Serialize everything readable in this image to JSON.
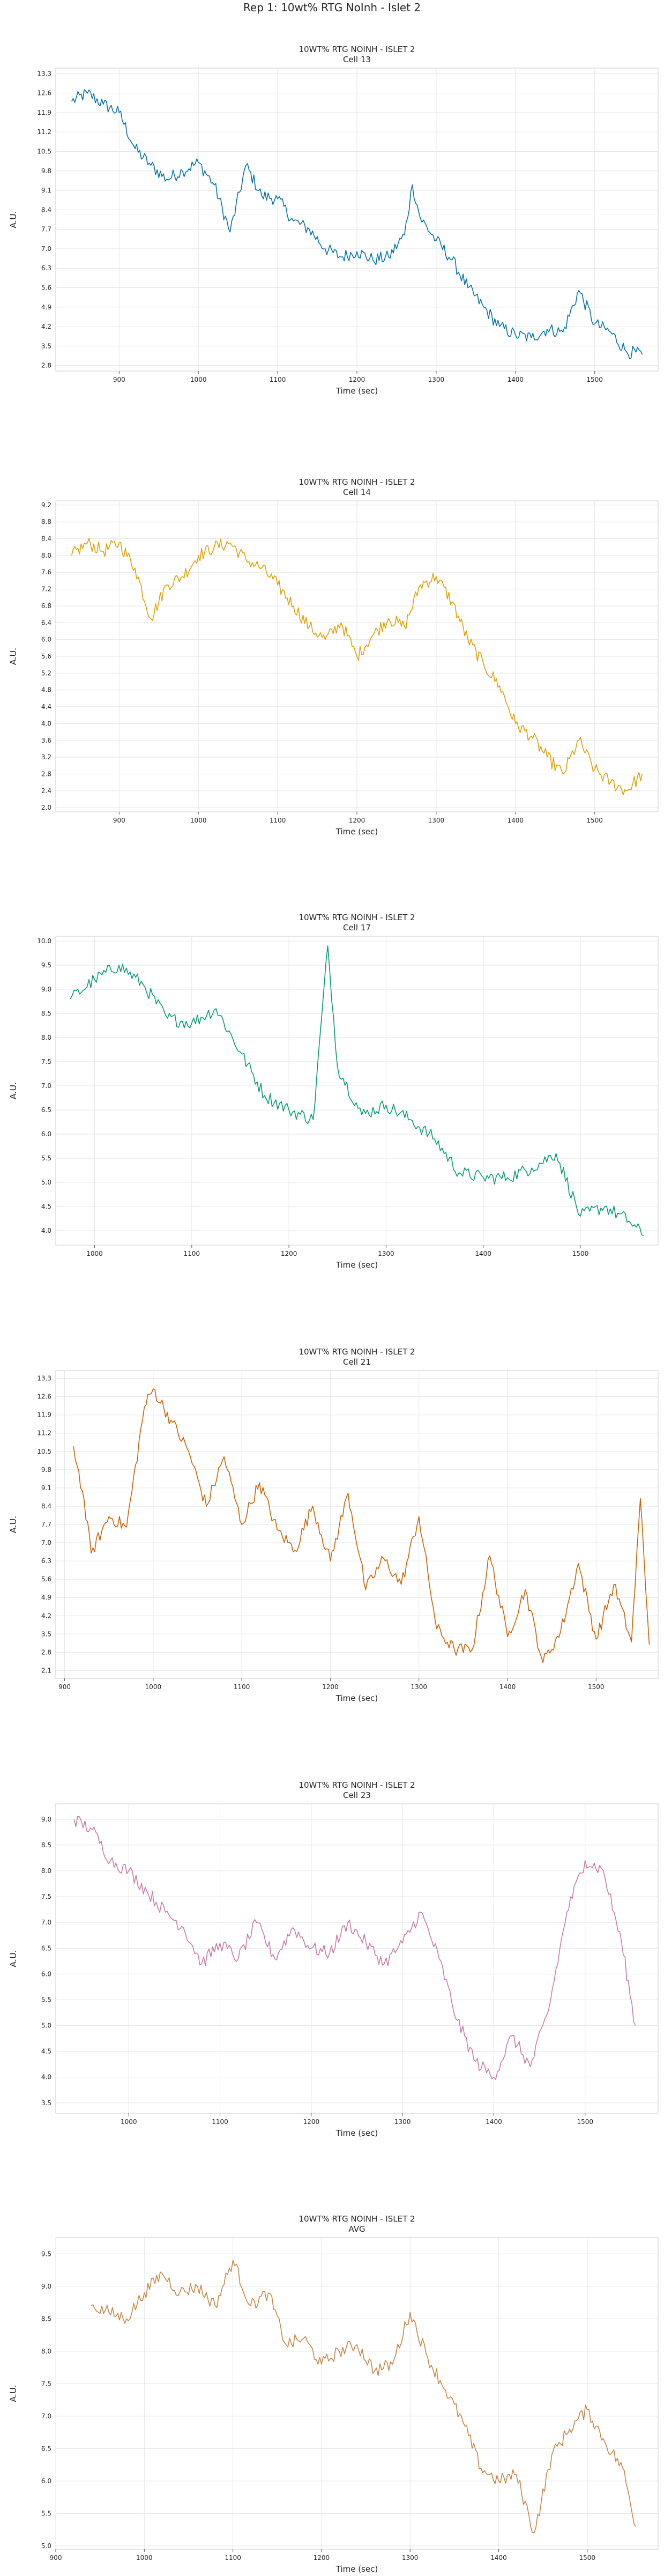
{
  "figure": {
    "suptitle": "Rep 1: 10wt% RTG NoInh - Islet 2"
  },
  "chart_data": [
    {
      "type": "line",
      "title": "10WT% RTG NOINH - ISLET 2",
      "subtitle": "Cell 13",
      "xlabel": "Time (sec)",
      "ylabel": "A.U.",
      "xlim": [
        820,
        1580
      ],
      "ylim": [
        2.6,
        13.5
      ],
      "xticks": [
        900,
        1000,
        1100,
        1200,
        1300,
        1400,
        1500
      ],
      "yticks": [
        2.8,
        3.5,
        4.2,
        4.9,
        5.6,
        6.3,
        7.0,
        7.7,
        8.4,
        9.1,
        9.8,
        10.5,
        11.2,
        11.9,
        12.6,
        13.3
      ],
      "ytick_labels": [
        "2.8",
        "3.5",
        "4.2",
        "4.9",
        "5.6",
        "6.3",
        "7.0",
        "7.7",
        "8.4",
        "9.1",
        "9.8",
        "10.5",
        "11.2",
        "11.9",
        "12.6",
        "13.3"
      ],
      "grid": true,
      "series": [
        {
          "color": "#0072B2",
          "x": [
            840,
            860,
            880,
            900,
            920,
            940,
            960,
            980,
            1000,
            1020,
            1040,
            1060,
            1080,
            1100,
            1120,
            1140,
            1160,
            1180,
            1200,
            1220,
            1240,
            1260,
            1270,
            1280,
            1300,
            1320,
            1340,
            1360,
            1380,
            1400,
            1420,
            1440,
            1460,
            1480,
            1500,
            1520,
            1540,
            1560
          ],
          "y": [
            12.3,
            12.6,
            12.2,
            11.9,
            10.6,
            10.0,
            9.5,
            9.8,
            10.1,
            9.3,
            7.6,
            10.0,
            8.9,
            8.8,
            8.0,
            7.7,
            7.0,
            6.7,
            6.9,
            6.6,
            6.7,
            7.5,
            9.3,
            8.1,
            7.3,
            6.6,
            5.6,
            4.9,
            4.2,
            3.9,
            3.8,
            4.1,
            4.0,
            5.5,
            4.3,
            4.0,
            3.3,
            3.2
          ]
        }
      ]
    },
    {
      "type": "line",
      "title": "10WT% RTG NOINH - ISLET 2",
      "subtitle": "Cell 14",
      "xlabel": "Time (sec)",
      "ylabel": "A.U.",
      "xlim": [
        820,
        1580
      ],
      "ylim": [
        1.9,
        9.3
      ],
      "xticks": [
        900,
        1000,
        1100,
        1200,
        1300,
        1400,
        1500
      ],
      "yticks": [
        2.0,
        2.4,
        2.8,
        3.2,
        3.6,
        4.0,
        4.4,
        4.8,
        5.2,
        5.6,
        6.0,
        6.4,
        6.8,
        7.2,
        7.6,
        8.0,
        8.4,
        8.8,
        9.2
      ],
      "ytick_labels": [
        "2.0",
        "2.4",
        "2.8",
        "3.2",
        "3.6",
        "4.0",
        "4.4",
        "4.8",
        "5.2",
        "5.6",
        "6.0",
        "6.4",
        "6.8",
        "7.2",
        "7.6",
        "8.0",
        "8.4",
        "8.8",
        "9.2"
      ],
      "grid": true,
      "series": [
        {
          "color": "#E69F00",
          "x": [
            840,
            860,
            880,
            900,
            920,
            940,
            960,
            980,
            1000,
            1020,
            1040,
            1060,
            1080,
            1100,
            1120,
            1140,
            1160,
            1180,
            1200,
            1220,
            1240,
            1260,
            1280,
            1300,
            1320,
            1340,
            1360,
            1380,
            1400,
            1420,
            1440,
            1460,
            1480,
            1500,
            1520,
            1540,
            1560
          ],
          "y": [
            8.0,
            8.3,
            8.1,
            8.3,
            7.7,
            6.5,
            7.3,
            7.5,
            8.0,
            8.2,
            8.3,
            7.9,
            7.7,
            7.3,
            6.8,
            6.3,
            6.0,
            6.4,
            5.6,
            6.1,
            6.5,
            6.3,
            7.3,
            7.5,
            6.9,
            6.0,
            5.4,
            4.9,
            4.0,
            3.7,
            3.2,
            2.8,
            3.6,
            2.9,
            2.6,
            2.4,
            2.8
          ]
        }
      ]
    },
    {
      "type": "line",
      "title": "10WT% RTG NOINH - ISLET 2",
      "subtitle": "Cell 17",
      "xlabel": "Time (sec)",
      "ylabel": "A.U.",
      "xlim": [
        960,
        1580
      ],
      "ylim": [
        3.7,
        10.1
      ],
      "xticks": [
        1000,
        1100,
        1200,
        1300,
        1400,
        1500
      ],
      "yticks": [
        4.0,
        4.5,
        5.0,
        5.5,
        6.0,
        6.5,
        7.0,
        7.5,
        8.0,
        8.5,
        9.0,
        9.5,
        10.0
      ],
      "ytick_labels": [
        "4.0",
        "4.5",
        "5.0",
        "5.5",
        "6.0",
        "6.5",
        "7.0",
        "7.5",
        "8.0",
        "8.5",
        "9.0",
        "9.5",
        "10.0"
      ],
      "grid": true,
      "series": [
        {
          "color": "#009E73",
          "x": [
            975,
            1000,
            1025,
            1050,
            1075,
            1100,
            1125,
            1150,
            1175,
            1200,
            1225,
            1240,
            1250,
            1275,
            1300,
            1325,
            1350,
            1375,
            1400,
            1425,
            1450,
            1475,
            1500,
            1525,
            1550,
            1565
          ],
          "y": [
            8.8,
            9.2,
            9.5,
            9.1,
            8.4,
            8.3,
            8.6,
            7.7,
            6.8,
            6.5,
            6.3,
            9.9,
            7.4,
            6.4,
            6.6,
            6.3,
            5.9,
            5.2,
            5.1,
            5.1,
            5.3,
            5.6,
            4.3,
            4.5,
            4.2,
            3.9
          ]
        }
      ]
    },
    {
      "type": "line",
      "title": "10WT% RTG NOINH - ISLET 2",
      "subtitle": "Cell 21",
      "xlabel": "Time (sec)",
      "ylabel": "A.U.",
      "xlim": [
        890,
        1570
      ],
      "ylim": [
        1.8,
        13.6
      ],
      "xticks": [
        900,
        1000,
        1100,
        1200,
        1300,
        1400,
        1500
      ],
      "yticks": [
        2.1,
        2.8,
        3.5,
        4.2,
        4.9,
        5.6,
        6.3,
        7.0,
        7.7,
        8.4,
        9.1,
        9.8,
        10.5,
        11.2,
        11.9,
        12.6,
        13.3
      ],
      "ytick_labels": [
        "2.1",
        "2.8",
        "3.5",
        "4.2",
        "4.9",
        "5.6",
        "6.3",
        "7.0",
        "7.7",
        "8.4",
        "9.1",
        "9.8",
        "10.5",
        "11.2",
        "11.9",
        "12.6",
        "13.3"
      ],
      "grid": true,
      "series": [
        {
          "color": "#D55E00",
          "x": [
            910,
            920,
            930,
            950,
            970,
            990,
            1000,
            1020,
            1040,
            1060,
            1080,
            1100,
            1120,
            1140,
            1160,
            1180,
            1200,
            1220,
            1240,
            1260,
            1280,
            1300,
            1320,
            1340,
            1360,
            1380,
            1400,
            1420,
            1440,
            1460,
            1480,
            1500,
            1520,
            1540,
            1550,
            1560
          ],
          "y": [
            10.7,
            9.0,
            6.6,
            8.0,
            7.6,
            12.2,
            12.9,
            11.7,
            10.5,
            8.4,
            10.3,
            7.7,
            9.3,
            7.5,
            6.7,
            8.4,
            6.3,
            8.9,
            5.2,
            6.4,
            5.4,
            8.0,
            3.7,
            2.9,
            2.9,
            6.5,
            3.4,
            5.2,
            2.4,
            3.6,
            6.2,
            3.3,
            5.4,
            3.2,
            8.7,
            3.1
          ]
        }
      ]
    },
    {
      "type": "line",
      "title": "10WT% RTG NOINH - ISLET 2",
      "subtitle": "Cell 23",
      "xlabel": "Time (sec)",
      "ylabel": "A.U.",
      "xlim": [
        920,
        1580
      ],
      "ylim": [
        3.3,
        9.3
      ],
      "xticks": [
        1000,
        1100,
        1200,
        1300,
        1400,
        1500
      ],
      "yticks": [
        3.5,
        4.0,
        4.5,
        5.0,
        5.5,
        6.0,
        6.5,
        7.0,
        7.5,
        8.0,
        8.5,
        9.0
      ],
      "ytick_labels": [
        "3.5",
        "4.0",
        "4.5",
        "5.0",
        "5.5",
        "6.0",
        "6.5",
        "7.0",
        "7.5",
        "8.0",
        "8.5",
        "9.0"
      ],
      "grid": true,
      "series": [
        {
          "color": "#CC79A7",
          "x": [
            940,
            960,
            980,
            1000,
            1020,
            1040,
            1060,
            1080,
            1100,
            1120,
            1140,
            1160,
            1180,
            1200,
            1220,
            1240,
            1260,
            1280,
            1300,
            1320,
            1340,
            1360,
            1380,
            1400,
            1420,
            1440,
            1460,
            1480,
            1500,
            1520,
            1540,
            1555
          ],
          "y": [
            9.0,
            8.8,
            8.2,
            8.0,
            7.6,
            7.2,
            6.9,
            6.2,
            6.6,
            6.3,
            7.0,
            6.3,
            6.9,
            6.5,
            6.4,
            7.0,
            6.6,
            6.2,
            6.6,
            7.2,
            6.3,
            5.1,
            4.3,
            4.0,
            4.8,
            4.2,
            5.3,
            7.2,
            8.2,
            8.0,
            6.6,
            5.0
          ]
        }
      ]
    },
    {
      "type": "line",
      "title": "10WT% RTG NOINH - ISLET 2",
      "subtitle": "AVG",
      "xlabel": "Time (sec)",
      "ylabel": "A.U.",
      "xlim": [
        900,
        1580
      ],
      "ylim": [
        4.95,
        9.75
      ],
      "xticks": [
        900,
        1000,
        1100,
        1200,
        1300,
        1400,
        1500
      ],
      "yticks": [
        5.0,
        5.5,
        6.0,
        6.5,
        7.0,
        7.5,
        8.0,
        8.5,
        9.0,
        9.5
      ],
      "ytick_labels": [
        "5.0",
        "5.5",
        "6.0",
        "6.5",
        "7.0",
        "7.5",
        "8.0",
        "8.5",
        "9.0",
        "9.5"
      ],
      "grid": true,
      "series": [
        {
          "color": "#C98545",
          "x": [
            940,
            960,
            980,
            1000,
            1020,
            1040,
            1060,
            1080,
            1100,
            1120,
            1140,
            1160,
            1180,
            1200,
            1220,
            1240,
            1260,
            1280,
            1300,
            1320,
            1340,
            1360,
            1380,
            1400,
            1420,
            1440,
            1460,
            1480,
            1500,
            1520,
            1540,
            1555
          ],
          "y": [
            8.7,
            8.6,
            8.5,
            8.9,
            9.2,
            8.9,
            9.0,
            8.7,
            9.4,
            8.7,
            8.9,
            8.1,
            8.2,
            7.8,
            8.0,
            8.1,
            7.7,
            7.8,
            8.6,
            7.9,
            7.4,
            6.9,
            6.2,
            6.0,
            6.1,
            5.2,
            6.4,
            6.8,
            7.1,
            6.6,
            6.2,
            5.3
          ]
        }
      ]
    }
  ]
}
